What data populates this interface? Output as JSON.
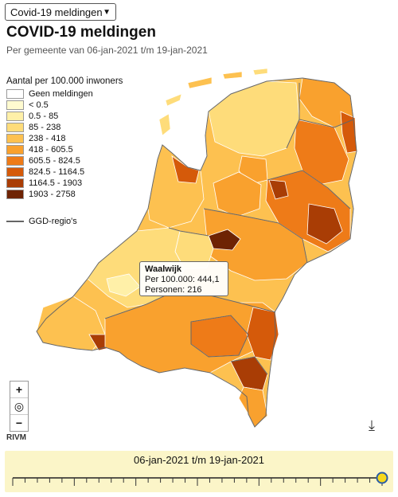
{
  "selector": {
    "value": "Covid-19 meldingen"
  },
  "header": {
    "title": "COVID-19 meldingen",
    "subtitle": "Per gemeente van 06-jan-2021 t/m 19-jan-2021"
  },
  "legend": {
    "title": "Aantal per 100.000 inwoners",
    "items": [
      {
        "label": "Geen meldingen",
        "color": "#ffffff"
      },
      {
        "label": "< 0.5",
        "color": "#fffbd0"
      },
      {
        "label": "0.5 - 85",
        "color": "#fff0a8"
      },
      {
        "label": "85 - 238",
        "color": "#fedc7a"
      },
      {
        "label": "238 - 418",
        "color": "#fdc150"
      },
      {
        "label": "418 - 605.5",
        "color": "#f9a12e"
      },
      {
        "label": "605.5 - 824.5",
        "color": "#ee7b18"
      },
      {
        "label": "824.5 - 1164.5",
        "color": "#d55a0a"
      },
      {
        "label": "1164.5 - 1903",
        "color": "#a93d05"
      },
      {
        "label": "1903 - 2758",
        "color": "#6e2304"
      }
    ],
    "ggd_label": "GGD-regio's"
  },
  "tooltip": {
    "name": "Waalwijk",
    "per100k": "Per 100.000: 444,1",
    "persons": "Personen: 216"
  },
  "controls": {
    "zoom_in": "+",
    "reset": "◎",
    "zoom_out": "−",
    "download_icon": "download-icon"
  },
  "source": "RIVM",
  "timeline": {
    "range_label": "06-jan-2021 t/m 19-jan-2021",
    "position": 1.0
  }
}
